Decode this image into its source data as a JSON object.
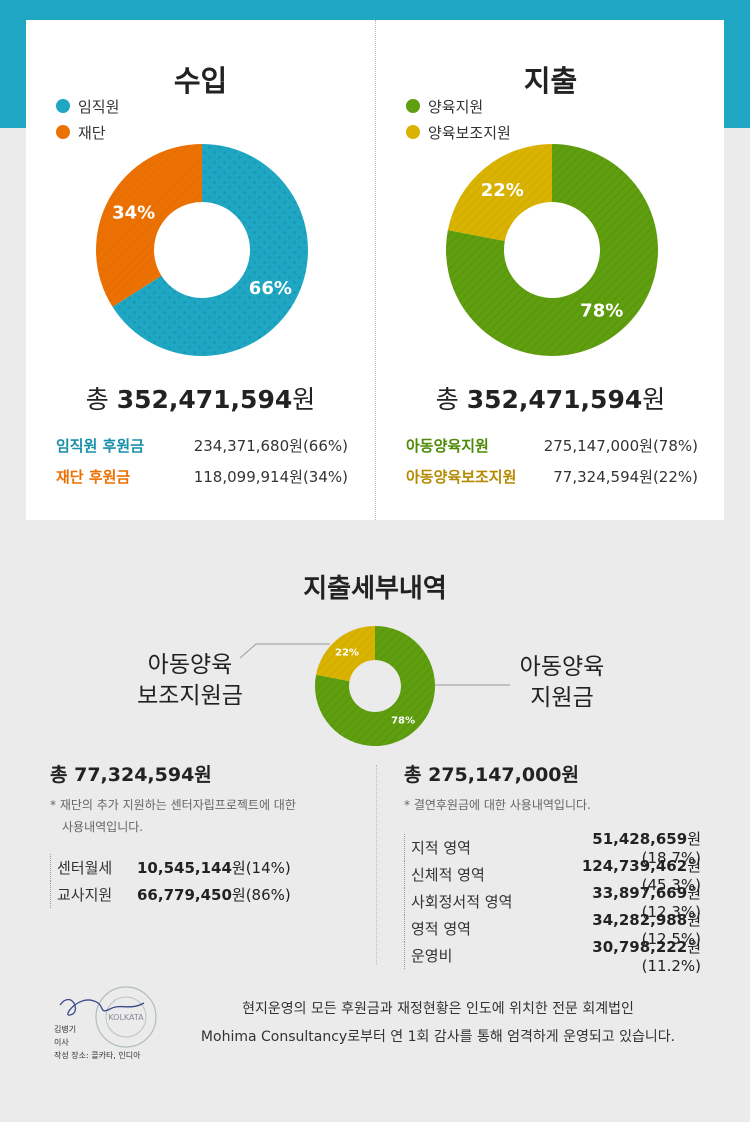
{
  "colors": {
    "teal": "#1ea6c2",
    "orange": "#ec7103",
    "green": "#5f9e0f",
    "yellow": "#d9b300",
    "brown": "#9a6c00"
  },
  "income": {
    "title": "수입",
    "legend": [
      "임직원",
      "재단"
    ],
    "total_prefix": "총 ",
    "total_value": "352,471,594",
    "total_suffix": "원",
    "rows": [
      {
        "label": "임직원 후원금",
        "value": "234,371,680원(66%)"
      },
      {
        "label": "재단 후원금",
        "value": "118,099,914원(34%)"
      }
    ]
  },
  "expense": {
    "title": "지출",
    "legend": [
      "양육지원",
      "양육보조지원"
    ],
    "total_prefix": "총 ",
    "total_value": "352,471,594",
    "total_suffix": "원",
    "rows": [
      {
        "label": "아동양육지원",
        "value": "275,147,000원(78%)"
      },
      {
        "label": "아동양육보조지원",
        "value": "77,324,594원(22%)"
      }
    ]
  },
  "detail": {
    "title": "지출세부내역",
    "left_callout": [
      "아동양육",
      "보조지원금"
    ],
    "right_callout": [
      "아동양육",
      "지원금"
    ],
    "left": {
      "total": "총 77,324,594원",
      "note_line1": "* 재단의 추가 지원하는 센터자립프로젝트에 대한",
      "note_line2": "사용내역입니다.",
      "rows": [
        {
          "label": "센터월세",
          "amount": "10,545,144",
          "rest": "원(14%)"
        },
        {
          "label": "교사지원",
          "amount": "66,779,450",
          "rest": "원(86%)"
        }
      ]
    },
    "right": {
      "total": "총 275,147,000원",
      "note_line1": "* 결연후원금에 대한 사용내역입니다.",
      "rows": [
        {
          "label": "지적 영역",
          "amount": "51,428,659",
          "rest": "원(18.7%)"
        },
        {
          "label": "신체적 영역",
          "amount": "124,739,462",
          "rest": "원(45.3%)"
        },
        {
          "label": "사회정서적 영역",
          "amount": "33,897,669",
          "rest": "원(12.3%)"
        },
        {
          "label": "영적 영역",
          "amount": "34,282,988",
          "rest": "원(12.5%)"
        },
        {
          "label": "운영비",
          "amount": "30,798,222",
          "rest": "원(11.2%)"
        }
      ]
    }
  },
  "footer": {
    "line1": "현지운영의 모든 후원금과 재정현황은 인도에 위치한 전문 회계법인",
    "line2": "Mohima Consultancy로부터 연 1회 감사를 통해 엄격하게 운영되고 있습니다.",
    "sig_name": "김병기",
    "sig_role": "이사",
    "sig_place": "작성 장소: 콜카타, 인디아",
    "seal_text": "KOLKATA"
  },
  "chart_data": [
    {
      "type": "pie",
      "title": "수입",
      "categories": [
        "임직원",
        "재단"
      ],
      "values": [
        66,
        34
      ],
      "labels": [
        "66%",
        "34%"
      ]
    },
    {
      "type": "pie",
      "title": "지출",
      "categories": [
        "양육지원",
        "양육보조지원"
      ],
      "values": [
        78,
        22
      ],
      "labels": [
        "78%",
        "22%"
      ]
    },
    {
      "type": "pie",
      "title": "지출세부내역",
      "categories": [
        "아동양육지원금",
        "아동양육보조지원금"
      ],
      "values": [
        78,
        22
      ],
      "labels": [
        "78%",
        "22%"
      ]
    }
  ]
}
